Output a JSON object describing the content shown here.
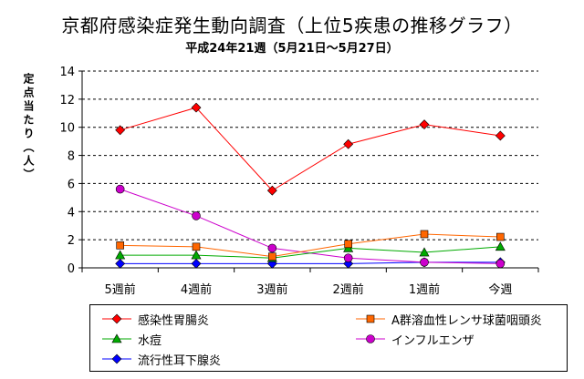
{
  "title": "京都府感染症発生動向調査（上位5疾患の推移グラフ）",
  "subtitle": "平成24年21週（5月21日～5月27日）",
  "ylabel": "定点当たり（人）",
  "chart_data": {
    "type": "line",
    "categories": [
      "5週前",
      "4週前",
      "3週前",
      "2週前",
      "1週前",
      "今週"
    ],
    "ylim": [
      0,
      14
    ],
    "yticks": [
      0,
      2,
      4,
      6,
      8,
      10,
      12,
      14
    ],
    "grid": true,
    "legend_position": "bottom",
    "series": [
      {
        "name": "感染性胃腸炎",
        "color": "#ff0000",
        "marker": "diamond",
        "values": [
          9.8,
          11.4,
          5.5,
          8.8,
          10.2,
          9.4
        ]
      },
      {
        "name": "A群溶血性レンサ球菌咽頭炎",
        "color": "#ff6600",
        "marker": "square",
        "values": [
          1.6,
          1.5,
          0.8,
          1.7,
          2.4,
          2.2
        ]
      },
      {
        "name": "水痘",
        "color": "#00aa00",
        "marker": "triangle",
        "values": [
          0.9,
          0.9,
          0.7,
          1.4,
          1.1,
          1.5
        ]
      },
      {
        "name": "インフルエンザ",
        "color": "#cc00cc",
        "marker": "circle",
        "values": [
          5.6,
          3.7,
          1.4,
          0.7,
          0.4,
          0.3
        ]
      },
      {
        "name": "流行性耳下腺炎",
        "color": "#0000ff",
        "marker": "diamond",
        "values": [
          0.3,
          0.3,
          0.3,
          0.3,
          0.4,
          0.4
        ]
      }
    ]
  }
}
